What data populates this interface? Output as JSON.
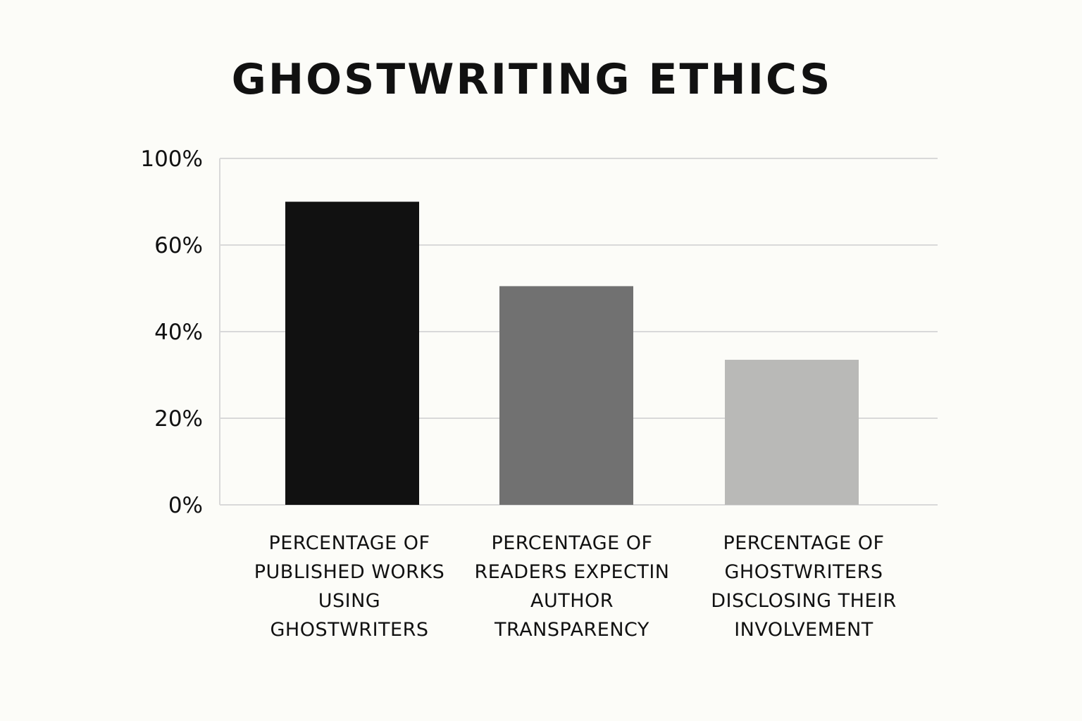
{
  "chart_data": {
    "type": "bar",
    "title": "GHOSTWRITING ETHICS",
    "categories": [
      [
        "PERCENTAGE OF",
        "PUBLISHED WORKS",
        "USING",
        "GHOSTWRITERS"
      ],
      [
        "PERCENTAGE OF",
        "READERS EXPECTIN",
        "AUTHOR",
        "TRANSPARENCY"
      ],
      [
        "PERCENTAGE OF",
        "GHOSTWRITERS",
        "DISCLOSING THEIR",
        "INVOLVEMENT"
      ]
    ],
    "values": [
      70,
      50.5,
      33.5
    ],
    "colors": [
      "#111111",
      "#717171",
      "#b9b9b7"
    ],
    "yticks": [
      0,
      20,
      40,
      60,
      100
    ],
    "ytick_labels": [
      "0%",
      "20%",
      "40%",
      "60%",
      "100%"
    ],
    "grid_color": "#d9d9d9",
    "ylim": [
      0,
      80
    ],
    "grid": true
  }
}
